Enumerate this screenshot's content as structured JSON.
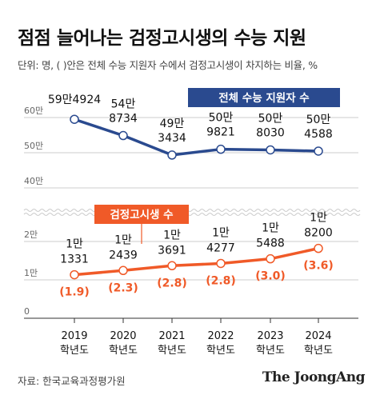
{
  "title": "점점 늘어나는 검정고시생의 수능 지원",
  "subtitle": "단위: 명, ( )안은 전체 수능 지원자 수에서 검정고시생이 차지하는 비율, %",
  "source": "자료: 한국교육과정평가원",
  "logo": "The JoongAng",
  "colors": {
    "total": "#2a4a8f",
    "ged": "#f05a28",
    "grid": "#cccccc",
    "axis_text": "#666666"
  },
  "chart_data": [
    {
      "type": "line",
      "panel": "upper",
      "series": [
        {
          "name": "전체 수능 지원자 수",
          "values": [
            594924,
            548734,
            493434,
            509821,
            508030,
            504588
          ],
          "labels": [
            [
              "59만4924"
            ],
            [
              "54만",
              "8734"
            ],
            [
              "49만",
              "3434"
            ],
            [
              "50만",
              "9821"
            ],
            [
              "50만",
              "8030"
            ],
            [
              "50만",
              "4588"
            ]
          ]
        }
      ],
      "ylim": [
        400000,
        600000
      ],
      "yticks": [
        400000,
        500000,
        600000
      ],
      "ytick_labels": [
        "40만",
        "50만",
        "60만"
      ]
    },
    {
      "type": "line",
      "panel": "lower",
      "categories": [
        [
          "2019",
          "학년도"
        ],
        [
          "2020",
          "학년도"
        ],
        [
          "2021",
          "학년도"
        ],
        [
          "2022",
          "학년도"
        ],
        [
          "2023",
          "학년도"
        ],
        [
          "2024",
          "학년도"
        ]
      ],
      "series": [
        {
          "name": "검정고시생 수",
          "values": [
            11331,
            12439,
            13691,
            14277,
            15488,
            18200
          ],
          "labels": [
            [
              "1만",
              "1331"
            ],
            [
              "1만",
              "2439"
            ],
            [
              "1만",
              "3691"
            ],
            [
              "1만",
              "4277"
            ],
            [
              "1만",
              "5488"
            ],
            [
              "1만",
              "8200"
            ]
          ],
          "ratios": [
            1.9,
            2.3,
            2.8,
            2.8,
            3.0,
            3.6
          ],
          "ratio_labels": [
            "(1.9)",
            "(2.3)",
            "(2.8)",
            "(2.8)",
            "(3.0)",
            "(3.6)"
          ]
        }
      ],
      "ylim": [
        0,
        20000
      ],
      "yticks": [
        0,
        10000,
        20000
      ],
      "ytick_labels": [
        "0",
        "1만",
        "2만"
      ]
    }
  ]
}
